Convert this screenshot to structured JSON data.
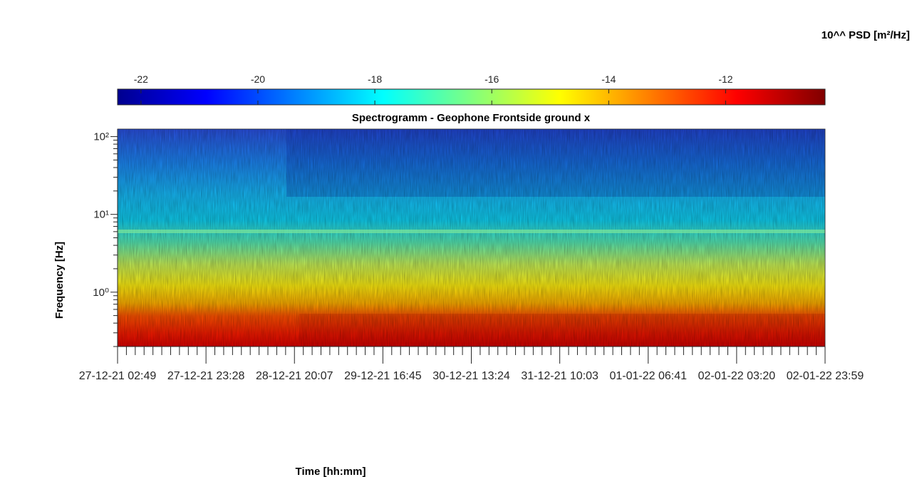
{
  "chart_data": {
    "type": "heatmap",
    "title": "Spectrogramm - Geophone Frontside ground x",
    "xlabel": "Time [hh:mm]",
    "ylabel": "Frequency [Hz]",
    "yscale": "log",
    "ylim": [
      0.2,
      125
    ],
    "y_tick_values": [
      1,
      10,
      100
    ],
    "y_tick_labels": [
      "10⁰",
      "10¹",
      "10²"
    ],
    "x_tick_labels": [
      "27-12-21 02:49",
      "27-12-21 23:28",
      "28-12-21 20:07",
      "29-12-21 16:45",
      "30-12-21 13:24",
      "31-12-21 10:03",
      "01-01-22 06:41",
      "02-01-22 03:20",
      "02-01-22 23:59"
    ],
    "colorbar": {
      "label": "10^^ PSD [m²/Hz]",
      "range": [
        -22.4,
        -10.3
      ],
      "colormap": "jet",
      "tick_values": [
        -22,
        -20,
        -18,
        -16,
        -14,
        -12
      ],
      "tick_labels": [
        "-22",
        "-20",
        "-18",
        "-16",
        "-14",
        "-12"
      ]
    },
    "grid": false
  }
}
